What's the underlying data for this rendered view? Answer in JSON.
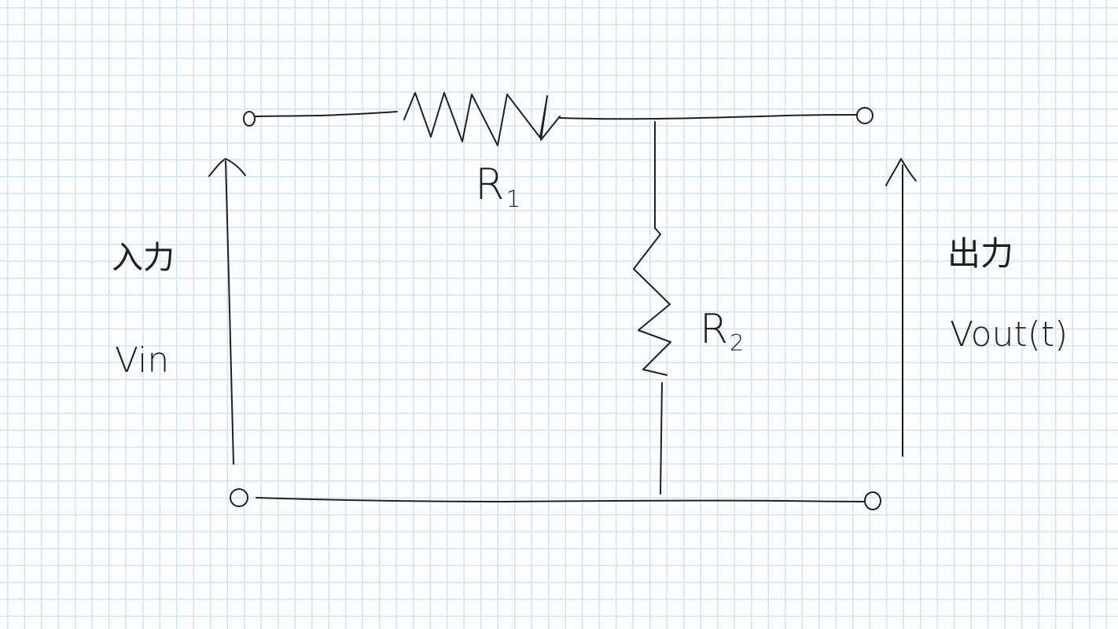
{
  "labels": {
    "input_jp": "入力",
    "input_symbol": "Vin",
    "output_jp": "出力",
    "output_symbol": "Vout(t)",
    "r1": {
      "letter": "R",
      "subscript": "1"
    },
    "r2": {
      "letter": "R",
      "subscript": "2"
    }
  },
  "colors": {
    "ink": "#1f1f1f",
    "grid": "#d4e3ef",
    "paper": "#fdfeff"
  }
}
